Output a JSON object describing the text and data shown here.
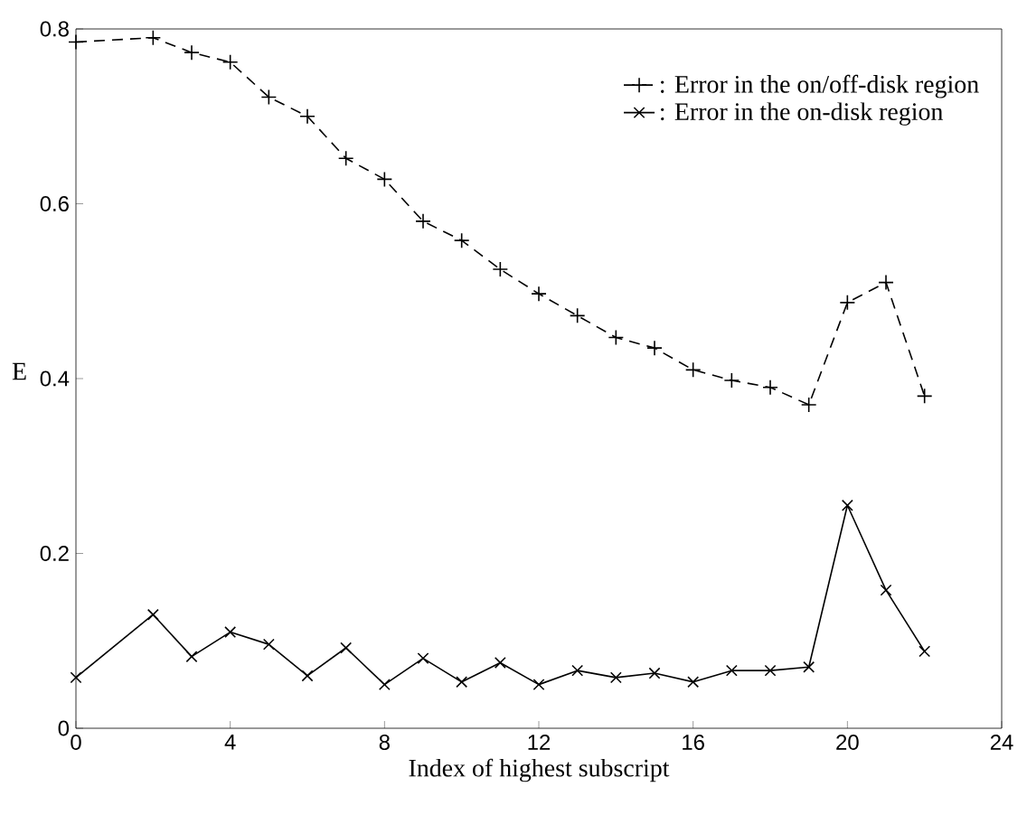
{
  "chart_data": {
    "type": "line",
    "xlabel": "Index of highest subscript",
    "ylabel": "E",
    "x": [
      0,
      2,
      3,
      4,
      5,
      6,
      7,
      8,
      9,
      10,
      11,
      12,
      13,
      14,
      15,
      16,
      17,
      18,
      19,
      20,
      21,
      22
    ],
    "series": [
      {
        "name": ": Error in the on/off-disk region",
        "color": "#000000",
        "line_style": "dashed",
        "marker": "plus",
        "values": [
          0.785,
          0.79,
          0.773,
          0.762,
          0.722,
          0.7,
          0.652,
          0.628,
          0.58,
          0.558,
          0.525,
          0.497,
          0.472,
          0.447,
          0.435,
          0.41,
          0.398,
          0.39,
          0.37,
          0.487,
          0.51,
          0.38
        ]
      },
      {
        "name": ": Error in the on-disk region",
        "color": "#000000",
        "line_style": "solid",
        "marker": "cross",
        "values": [
          0.058,
          0.13,
          0.082,
          0.11,
          0.096,
          0.06,
          0.092,
          0.05,
          0.08,
          0.053,
          0.075,
          0.05,
          0.066,
          0.058,
          0.063,
          0.053,
          0.066,
          0.066,
          0.07,
          0.255,
          0.158,
          0.088
        ]
      }
    ],
    "xlim": [
      0,
      24
    ],
    "ylim": [
      0,
      0.8
    ],
    "xticks": [
      0,
      4,
      8,
      12,
      16,
      20,
      24
    ],
    "yticks": [
      0,
      0.2,
      0.4,
      0.6,
      0.8
    ],
    "grid": false,
    "legend": "top right"
  }
}
